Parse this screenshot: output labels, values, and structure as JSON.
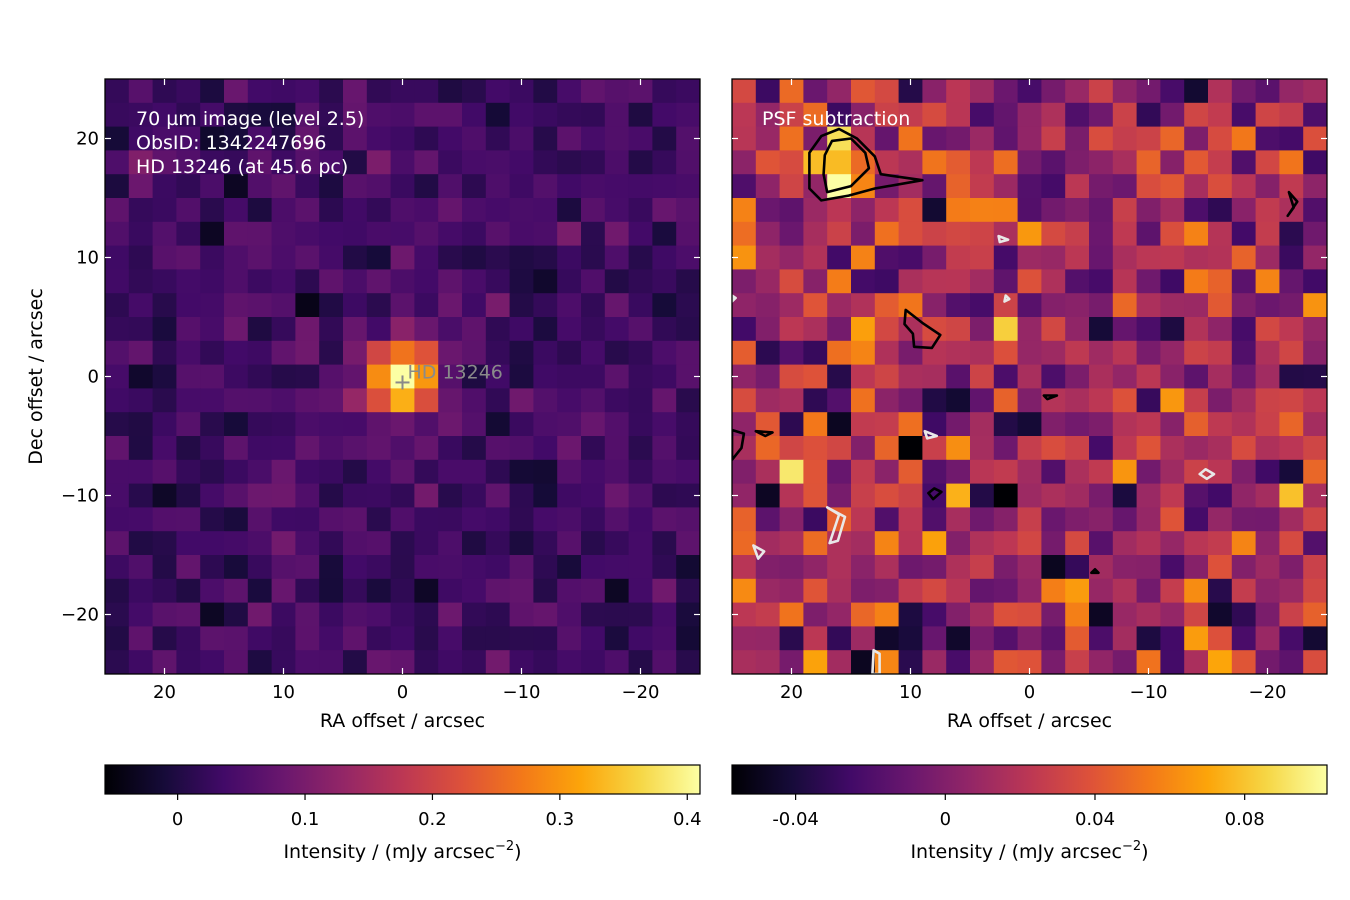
{
  "chart_data": [
    {
      "type": "heatmap",
      "panel": "left",
      "xlabel": "RA offset / arcsec",
      "ylabel": "Dec offset / arcsec",
      "xlim": [
        25,
        -25
      ],
      "ylim": [
        -25,
        25
      ],
      "xticks": [
        20,
        10,
        0,
        -10,
        -20
      ],
      "xtick_labels": [
        "20",
        "10",
        "0",
        "−10",
        "−20"
      ],
      "yticks": [
        20,
        10,
        0,
        -10,
        -20
      ],
      "ytick_labels": [
        "20",
        "10",
        "0",
        "−10",
        "−20"
      ],
      "grid": 25,
      "annotations": [
        "70 µm image (level 2.5)",
        "ObsID: 1342247696",
        "HD 13246 (at 45.6 pc)"
      ],
      "star": {
        "label": "HD  13246",
        "x": 0,
        "y": -0.5
      },
      "source": {
        "x": 0,
        "y": 0,
        "peak": 0.41
      },
      "colormap": "inferno",
      "colorbar": {
        "label": "Intensity / (mJy arcsec",
        "label_sup": "−2",
        "label_tail": ")",
        "range": [
          -0.057,
          0.41
        ],
        "ticks": [
          0,
          0.1,
          0.2,
          0.3,
          0.4
        ],
        "tick_labels": [
          "0",
          "0.1",
          "0.2",
          "0.3",
          "0.4"
        ]
      }
    },
    {
      "type": "heatmap",
      "panel": "right",
      "xlabel": "RA offset / arcsec",
      "ylabel": "",
      "xlim": [
        25,
        -25
      ],
      "ylim": [
        -25,
        25
      ],
      "xticks": [
        20,
        10,
        0,
        -10,
        -20
      ],
      "xtick_labels": [
        "20",
        "10",
        "0",
        "−10",
        "−20"
      ],
      "grid": 25,
      "annotations": [
        "PSF subtraction"
      ],
      "residual_peak": {
        "x": 16,
        "y": 18,
        "value": 0.1
      },
      "colormap": "inferno",
      "colorbar": {
        "label": "Intensity / (mJy arcsec",
        "label_sup": "−2",
        "label_tail": ")",
        "range": [
          -0.057,
          0.102
        ],
        "ticks": [
          -0.04,
          0,
          0.04,
          0.08
        ],
        "tick_labels": [
          "-0.04",
          "0",
          "0.04",
          "0.08"
        ]
      },
      "contours_black": [
        [
          [
            18.5,
            18.8
          ],
          [
            17.5,
            20.2
          ],
          [
            16,
            20.8
          ],
          [
            14.5,
            20
          ],
          [
            13,
            18.5
          ],
          [
            12.5,
            17
          ],
          [
            9,
            16.5
          ],
          [
            13,
            15.8
          ],
          [
            15.2,
            15.2
          ],
          [
            17.5,
            14.8
          ],
          [
            18.5,
            15.8
          ]
        ],
        [
          [
            17.2,
            18.6
          ],
          [
            16.6,
            19.8
          ],
          [
            15,
            20
          ],
          [
            13.8,
            18.8
          ],
          [
            13.5,
            17.5
          ],
          [
            15,
            16
          ],
          [
            17,
            15.5
          ],
          [
            17.3,
            17
          ]
        ],
        [
          [
            10.4,
            5.6
          ],
          [
            9,
            4.5
          ],
          [
            7.5,
            3.5
          ],
          [
            8.2,
            2.4
          ],
          [
            9.7,
            2.5
          ],
          [
            9.8,
            3.6
          ],
          [
            10.5,
            4.4
          ]
        ],
        [
          [
            25,
            -4.5
          ],
          [
            24,
            -4.8
          ],
          [
            24.2,
            -6
          ],
          [
            25,
            -7
          ]
        ],
        [
          [
            22.2,
            -5
          ],
          [
            21.6,
            -4.7
          ],
          [
            23,
            -4.6
          ]
        ],
        [
          [
            -21.8,
            15.5
          ],
          [
            -22.2,
            14.2
          ],
          [
            -21.7,
            13.5
          ],
          [
            -22.5,
            14.7
          ]
        ],
        [
          [
            -1.2,
            -1.6
          ],
          [
            -2.3,
            -1.6
          ],
          [
            -1.5,
            -1.9
          ]
        ],
        [
          [
            -5.5,
            -16.2
          ],
          [
            -5.8,
            -16.5
          ],
          [
            -5.2,
            -16.5
          ]
        ],
        [
          [
            7.4,
            -9.7
          ],
          [
            8.1,
            -10.3
          ],
          [
            8.5,
            -9.8
          ],
          [
            8.0,
            -9.4
          ]
        ]
      ],
      "contours_white": [
        [
          [
            17,
            -11
          ],
          [
            16,
            -11.6
          ],
          [
            16.8,
            -14
          ],
          [
            16.1,
            -13.8
          ],
          [
            15.5,
            -11.8
          ]
        ],
        [
          [
            23.2,
            -14.2
          ],
          [
            22.8,
            -15.3
          ],
          [
            22.3,
            -14.7
          ]
        ],
        [
          [
            13.1,
            -23
          ],
          [
            12.6,
            -23.3
          ],
          [
            12.6,
            -25
          ],
          [
            13.2,
            -25
          ]
        ],
        [
          [
            8.8,
            -4.6
          ],
          [
            7.8,
            -5
          ],
          [
            8.6,
            -5.2
          ]
        ],
        [
          [
            2.6,
            11.8
          ],
          [
            1.8,
            11.5
          ],
          [
            2.5,
            11.3
          ]
        ],
        [
          [
            2,
            6.8
          ],
          [
            1.7,
            6.5
          ],
          [
            2.1,
            6.3
          ]
        ],
        [
          [
            -14.8,
            -7.8
          ],
          [
            -15.5,
            -8.2
          ],
          [
            -14.9,
            -8.6
          ],
          [
            -14.3,
            -8.2
          ]
        ],
        [
          [
            25,
            6.8
          ],
          [
            24.7,
            6.6
          ],
          [
            25,
            6.3
          ]
        ]
      ]
    }
  ]
}
